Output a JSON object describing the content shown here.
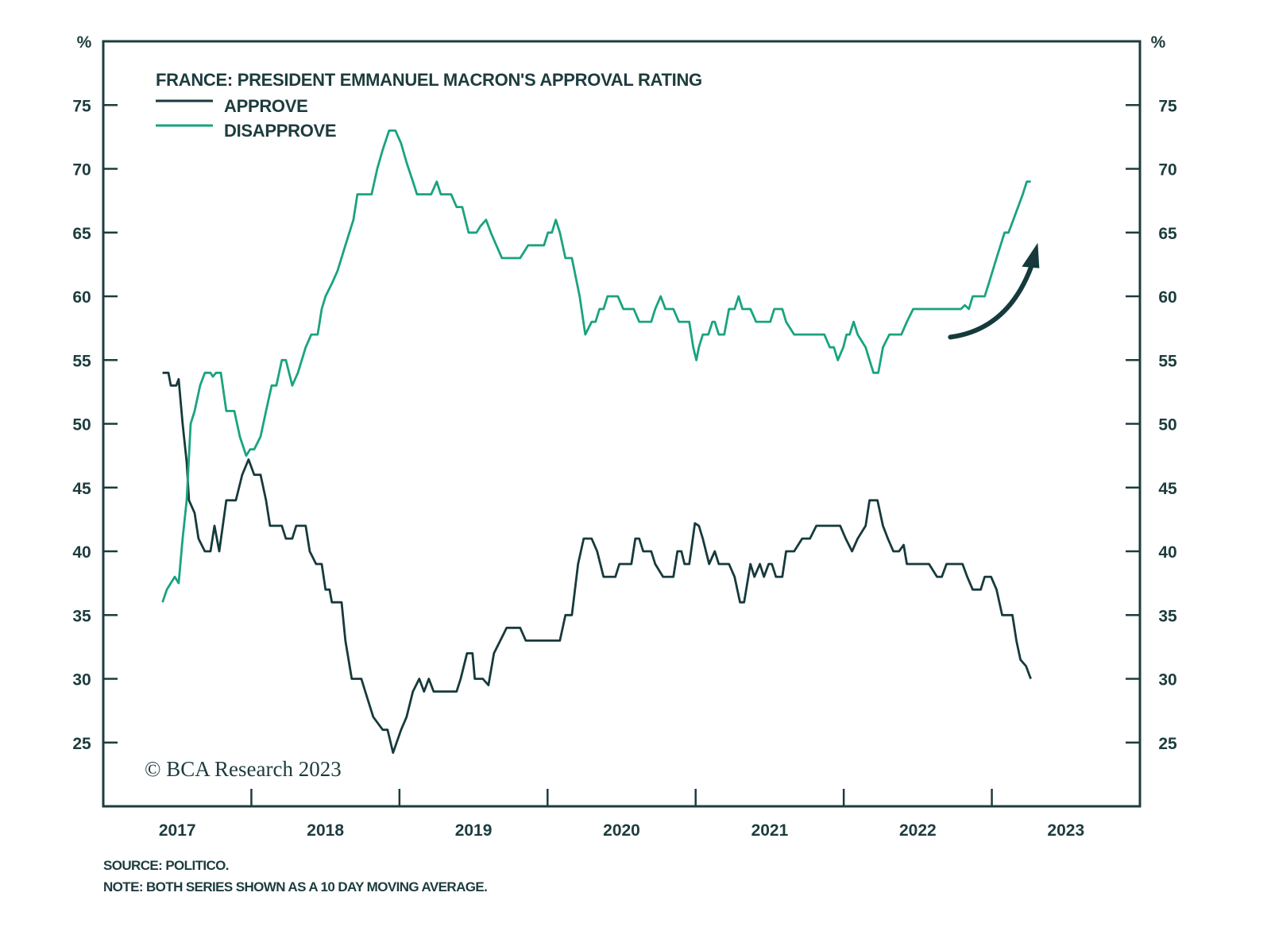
{
  "chart_data": {
    "type": "line",
    "title": "FRANCE: PRESIDENT EMMANUEL MACRON'S APPROVAL RATING",
    "ylabel_left": "%",
    "ylabel_right": "%",
    "xlim": [
      2017.0,
      2024.0
    ],
    "ylim": [
      20,
      80
    ],
    "yticks": [
      25,
      30,
      35,
      40,
      45,
      50,
      55,
      60,
      65,
      70,
      75
    ],
    "xtick_marks": [
      2018,
      2019,
      2020,
      2021,
      2022,
      2023
    ],
    "xtick_labels": [
      {
        "label": "2017",
        "at": 2017.5
      },
      {
        "label": "2018",
        "at": 2018.5
      },
      {
        "label": "2019",
        "at": 2019.5
      },
      {
        "label": "2020",
        "at": 2020.5
      },
      {
        "label": "2021",
        "at": 2021.5
      },
      {
        "label": "2022",
        "at": 2022.5
      },
      {
        "label": "2023",
        "at": 2023.5
      }
    ],
    "legend_placement": "top-left",
    "series": [
      {
        "name": "APPROVE",
        "color": "#163a3c",
        "points": [
          [
            2017.4,
            54
          ],
          [
            2017.44,
            54
          ],
          [
            2017.456,
            53
          ],
          [
            2017.493,
            53
          ],
          [
            2017.509,
            53.5
          ],
          [
            2017.536,
            50
          ],
          [
            2017.563,
            47
          ],
          [
            2017.579,
            44
          ],
          [
            2017.617,
            43
          ],
          [
            2017.643,
            41
          ],
          [
            2017.686,
            40
          ],
          [
            2017.724,
            40
          ],
          [
            2017.751,
            42
          ],
          [
            2017.783,
            40
          ],
          [
            2017.831,
            44
          ],
          [
            2017.895,
            44
          ],
          [
            2017.938,
            46
          ],
          [
            2017.981,
            47.2
          ],
          [
            2018.019,
            46
          ],
          [
            2018.062,
            46
          ],
          [
            2018.099,
            44
          ],
          [
            2018.126,
            42
          ],
          [
            2018.206,
            42
          ],
          [
            2018.233,
            41
          ],
          [
            2018.276,
            41
          ],
          [
            2018.303,
            42
          ],
          [
            2018.367,
            42
          ],
          [
            2018.394,
            40
          ],
          [
            2018.437,
            39
          ],
          [
            2018.475,
            39
          ],
          [
            2018.501,
            37
          ],
          [
            2018.528,
            37
          ],
          [
            2018.544,
            36
          ],
          [
            2018.609,
            36
          ],
          [
            2018.635,
            33
          ],
          [
            2018.678,
            30
          ],
          [
            2018.743,
            30
          ],
          [
            2018.769,
            29
          ],
          [
            2018.823,
            27
          ],
          [
            2018.887,
            26
          ],
          [
            2018.92,
            26
          ],
          [
            2018.957,
            24.2
          ],
          [
            2019.011,
            26
          ],
          [
            2019.048,
            27
          ],
          [
            2019.091,
            29
          ],
          [
            2019.134,
            30
          ],
          [
            2019.166,
            29
          ],
          [
            2019.198,
            30
          ],
          [
            2019.231,
            29
          ],
          [
            2019.386,
            29
          ],
          [
            2019.413,
            30
          ],
          [
            2019.456,
            32
          ],
          [
            2019.493,
            32
          ],
          [
            2019.509,
            30
          ],
          [
            2019.563,
            30
          ],
          [
            2019.601,
            29.5
          ],
          [
            2019.638,
            32
          ],
          [
            2019.681,
            33
          ],
          [
            2019.724,
            34
          ],
          [
            2019.815,
            34
          ],
          [
            2019.853,
            33
          ],
          [
            2020.083,
            33
          ],
          [
            2020.121,
            35
          ],
          [
            2020.164,
            35
          ],
          [
            2020.206,
            39
          ],
          [
            2020.244,
            41
          ],
          [
            2020.298,
            41
          ],
          [
            2020.335,
            40
          ],
          [
            2020.378,
            38
          ],
          [
            2020.458,
            38
          ],
          [
            2020.485,
            39
          ],
          [
            2020.566,
            39
          ],
          [
            2020.593,
            41
          ],
          [
            2020.619,
            41
          ],
          [
            2020.646,
            40
          ],
          [
            2020.7,
            40
          ],
          [
            2020.727,
            39
          ],
          [
            2020.78,
            38
          ],
          [
            2020.85,
            38
          ],
          [
            2020.877,
            40
          ],
          [
            2020.904,
            40
          ],
          [
            2020.925,
            39
          ],
          [
            2020.957,
            39
          ],
          [
            2020.995,
            42.2
          ],
          [
            2021.022,
            42
          ],
          [
            2021.048,
            41
          ],
          [
            2021.091,
            39
          ],
          [
            2021.129,
            40
          ],
          [
            2021.156,
            39
          ],
          [
            2021.225,
            39
          ],
          [
            2021.263,
            38
          ],
          [
            2021.3,
            36
          ],
          [
            2021.327,
            36
          ],
          [
            2021.37,
            39
          ],
          [
            2021.397,
            38
          ],
          [
            2021.434,
            39
          ],
          [
            2021.461,
            38
          ],
          [
            2021.493,
            39
          ],
          [
            2021.515,
            39
          ],
          [
            2021.542,
            38
          ],
          [
            2021.585,
            38
          ],
          [
            2021.611,
            40
          ],
          [
            2021.665,
            40
          ],
          [
            2021.719,
            41
          ],
          [
            2021.772,
            41
          ],
          [
            2021.815,
            42
          ],
          [
            2021.933,
            42
          ],
          [
            2021.976,
            42
          ],
          [
            2022.013,
            41
          ],
          [
            2022.056,
            40
          ],
          [
            2022.094,
            41
          ],
          [
            2022.148,
            42
          ],
          [
            2022.174,
            44
          ],
          [
            2022.228,
            44
          ],
          [
            2022.265,
            42
          ],
          [
            2022.298,
            41
          ],
          [
            2022.335,
            40
          ],
          [
            2022.373,
            40
          ],
          [
            2022.405,
            40.5
          ],
          [
            2022.426,
            39
          ],
          [
            2022.576,
            39
          ],
          [
            2022.63,
            38
          ],
          [
            2022.662,
            38
          ],
          [
            2022.694,
            39
          ],
          [
            2022.802,
            39
          ],
          [
            2022.834,
            38
          ],
          [
            2022.871,
            37
          ],
          [
            2022.925,
            37
          ],
          [
            2022.952,
            38
          ],
          [
            2022.995,
            38
          ],
          [
            2023.032,
            37
          ],
          [
            2023.07,
            35
          ],
          [
            2023.139,
            35
          ],
          [
            2023.166,
            33
          ],
          [
            2023.193,
            31.5
          ],
          [
            2023.231,
            31
          ],
          [
            2023.263,
            30
          ]
        ]
      },
      {
        "name": "DISAPPROVE",
        "color": "#1aa37f",
        "points": [
          [
            2017.4,
            36
          ],
          [
            2017.429,
            37
          ],
          [
            2017.456,
            37.5
          ],
          [
            2017.483,
            38
          ],
          [
            2017.509,
            37.5
          ],
          [
            2017.536,
            41
          ],
          [
            2017.563,
            44
          ],
          [
            2017.59,
            50
          ],
          [
            2017.617,
            51
          ],
          [
            2017.654,
            53
          ],
          [
            2017.686,
            54
          ],
          [
            2017.724,
            54
          ],
          [
            2017.74,
            53.7
          ],
          [
            2017.761,
            54
          ],
          [
            2017.794,
            54
          ],
          [
            2017.831,
            51
          ],
          [
            2017.885,
            51
          ],
          [
            2017.922,
            49
          ],
          [
            2017.965,
            47.5
          ],
          [
            2017.992,
            48
          ],
          [
            2018.019,
            48
          ],
          [
            2018.062,
            49
          ],
          [
            2018.099,
            51
          ],
          [
            2018.137,
            53
          ],
          [
            2018.169,
            53
          ],
          [
            2018.206,
            55
          ],
          [
            2018.233,
            55
          ],
          [
            2018.276,
            53
          ],
          [
            2018.314,
            54
          ],
          [
            2018.367,
            56
          ],
          [
            2018.405,
            57
          ],
          [
            2018.448,
            57
          ],
          [
            2018.475,
            59
          ],
          [
            2018.501,
            60
          ],
          [
            2018.544,
            61
          ],
          [
            2018.582,
            62
          ],
          [
            2018.635,
            64
          ],
          [
            2018.689,
            66
          ],
          [
            2018.716,
            68
          ],
          [
            2018.812,
            68
          ],
          [
            2018.85,
            70
          ],
          [
            2018.887,
            71.5
          ],
          [
            2018.93,
            73
          ],
          [
            2018.973,
            73
          ],
          [
            2019.011,
            72
          ],
          [
            2019.048,
            70.5
          ],
          [
            2019.091,
            69
          ],
          [
            2019.118,
            68
          ],
          [
            2019.214,
            68
          ],
          [
            2019.252,
            69
          ],
          [
            2019.279,
            68
          ],
          [
            2019.349,
            68
          ],
          [
            2019.386,
            67
          ],
          [
            2019.424,
            67
          ],
          [
            2019.467,
            65
          ],
          [
            2019.52,
            65
          ],
          [
            2019.547,
            65.5
          ],
          [
            2019.585,
            66
          ],
          [
            2019.617,
            65
          ],
          [
            2019.654,
            64
          ],
          [
            2019.692,
            63
          ],
          [
            2019.815,
            63
          ],
          [
            2019.869,
            64
          ],
          [
            2019.976,
            64
          ],
          [
            2020.003,
            65
          ],
          [
            2020.029,
            65
          ],
          [
            2020.056,
            66
          ],
          [
            2020.083,
            65
          ],
          [
            2020.121,
            63
          ],
          [
            2020.164,
            63
          ],
          [
            2020.217,
            60
          ],
          [
            2020.255,
            57
          ],
          [
            2020.298,
            58
          ],
          [
            2020.324,
            58
          ],
          [
            2020.351,
            59
          ],
          [
            2020.378,
            59
          ],
          [
            2020.405,
            60
          ],
          [
            2020.475,
            60
          ],
          [
            2020.512,
            59
          ],
          [
            2020.582,
            59
          ],
          [
            2020.619,
            58
          ],
          [
            2020.7,
            58
          ],
          [
            2020.727,
            59
          ],
          [
            2020.764,
            60
          ],
          [
            2020.796,
            59
          ],
          [
            2020.85,
            59
          ],
          [
            2020.887,
            58
          ],
          [
            2020.957,
            58
          ],
          [
            2020.984,
            56
          ],
          [
            2021.005,
            55
          ],
          [
            2021.022,
            56
          ],
          [
            2021.048,
            57
          ],
          [
            2021.086,
            57
          ],
          [
            2021.113,
            58
          ],
          [
            2021.129,
            58
          ],
          [
            2021.156,
            57
          ],
          [
            2021.193,
            57
          ],
          [
            2021.225,
            59
          ],
          [
            2021.263,
            59
          ],
          [
            2021.29,
            60
          ],
          [
            2021.316,
            59
          ],
          [
            2021.37,
            59
          ],
          [
            2021.408,
            58
          ],
          [
            2021.504,
            58
          ],
          [
            2021.531,
            59
          ],
          [
            2021.585,
            59
          ],
          [
            2021.611,
            58
          ],
          [
            2021.665,
            57
          ],
          [
            2021.826,
            57
          ],
          [
            2021.869,
            57
          ],
          [
            2021.906,
            56
          ],
          [
            2021.933,
            56
          ],
          [
            2021.96,
            55
          ],
          [
            2021.997,
            56
          ],
          [
            2022.019,
            57
          ],
          [
            2022.04,
            57
          ],
          [
            2022.067,
            58
          ],
          [
            2022.094,
            57
          ],
          [
            2022.148,
            56
          ],
          [
            2022.174,
            55
          ],
          [
            2022.201,
            54
          ],
          [
            2022.233,
            54
          ],
          [
            2022.265,
            56
          ],
          [
            2022.308,
            57
          ],
          [
            2022.389,
            57
          ],
          [
            2022.426,
            58
          ],
          [
            2022.469,
            59
          ],
          [
            2022.737,
            59
          ],
          [
            2022.791,
            59
          ],
          [
            2022.818,
            59.3
          ],
          [
            2022.845,
            59
          ],
          [
            2022.871,
            60
          ],
          [
            2022.952,
            60
          ],
          [
            2022.979,
            61
          ],
          [
            2023.032,
            63
          ],
          [
            2023.086,
            65
          ],
          [
            2023.113,
            65
          ],
          [
            2023.145,
            66
          ],
          [
            2023.177,
            67
          ],
          [
            2023.209,
            68
          ],
          [
            2023.236,
            69
          ],
          [
            2023.263,
            69
          ]
        ]
      }
    ],
    "annotation": {
      "type": "arrow",
      "from": [
        2022.72,
        56.8
      ],
      "to": [
        2023.31,
        64.2
      ],
      "color": "#163a3c"
    },
    "watermark": "© BCA Research 2023"
  },
  "footer": {
    "source": "SOURCE: POLITICO.",
    "note": "NOTE: BOTH SERIES SHOWN AS A 10 DAY MOVING AVERAGE."
  }
}
